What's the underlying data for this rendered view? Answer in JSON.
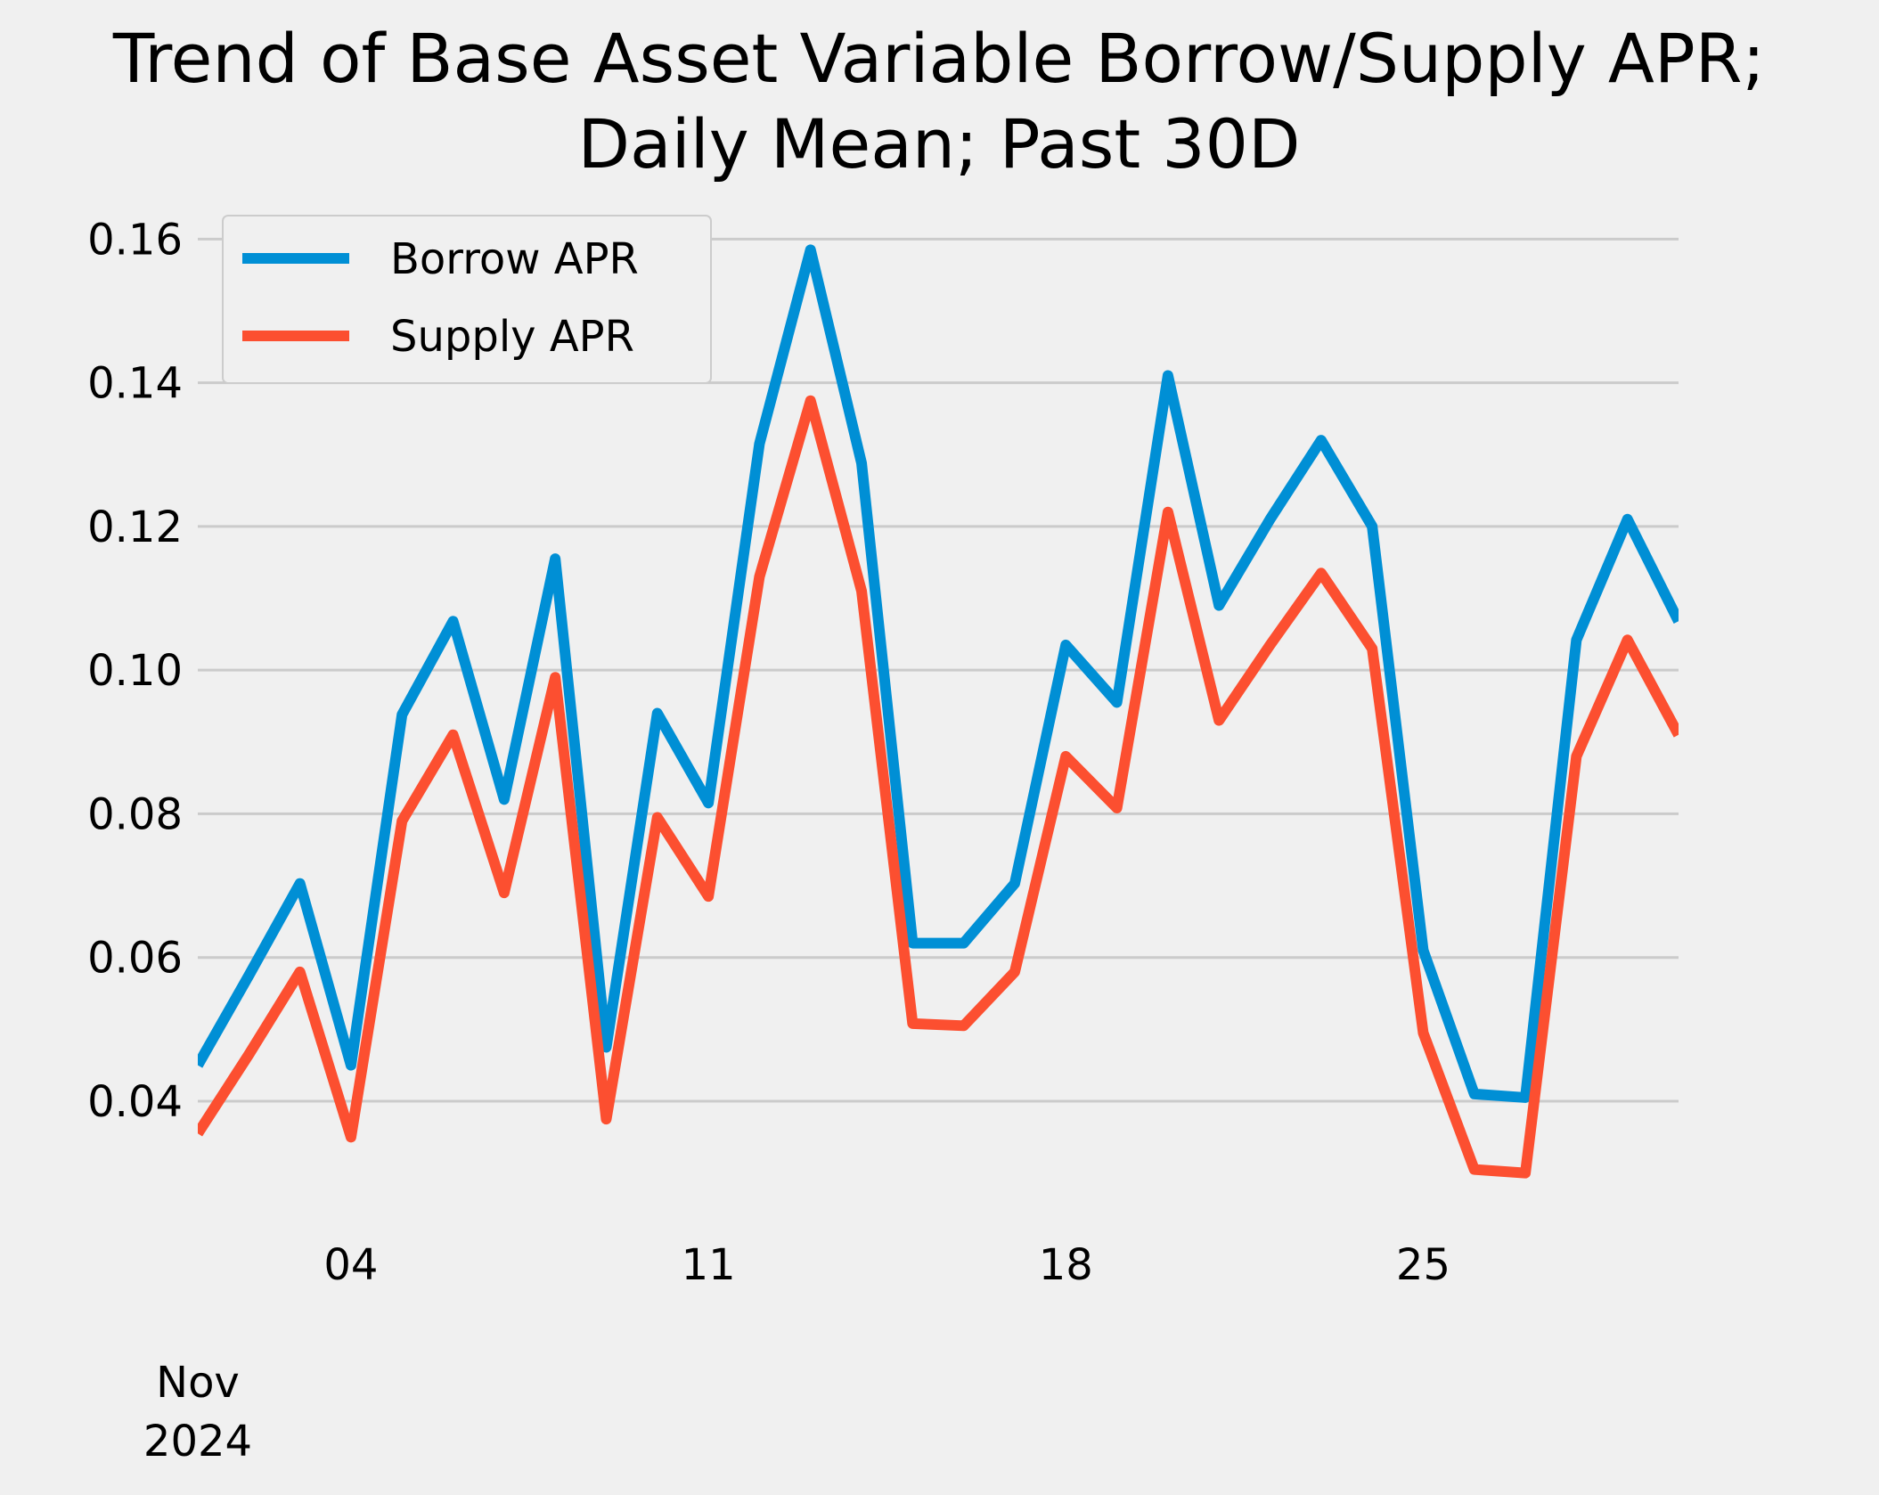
{
  "chart_data": {
    "type": "line",
    "title_lines": [
      "Trend of Base Asset Variable Borrow/Supply APR;",
      "Daily Mean; Past 30D"
    ],
    "xlabel": "",
    "ylabel": "",
    "x": [
      "2024-11-01",
      "2024-11-02",
      "2024-11-03",
      "2024-11-04",
      "2024-11-05",
      "2024-11-06",
      "2024-11-07",
      "2024-11-08",
      "2024-11-09",
      "2024-11-10",
      "2024-11-11",
      "2024-11-12",
      "2024-11-13",
      "2024-11-14",
      "2024-11-15",
      "2024-11-16",
      "2024-11-17",
      "2024-11-18",
      "2024-11-19",
      "2024-11-20",
      "2024-11-21",
      "2024-11-22",
      "2024-11-23",
      "2024-11-24",
      "2024-11-25",
      "2024-11-26",
      "2024-11-27",
      "2024-11-28",
      "2024-11-29",
      "2024-11-30"
    ],
    "x_range": [
      "2024-11-01",
      "2024-11-30"
    ],
    "x_ticks": [
      {
        "date": "2024-11-04",
        "label": "04"
      },
      {
        "date": "2024-11-11",
        "label": "11"
      },
      {
        "date": "2024-11-18",
        "label": "18"
      },
      {
        "date": "2024-11-25",
        "label": "25"
      }
    ],
    "x_secondary_label": [
      "Nov",
      "2024"
    ],
    "ylim": [
      0.024,
      0.165
    ],
    "y_ticks": [
      0.04,
      0.06,
      0.08,
      0.1,
      0.12,
      0.14,
      0.16
    ],
    "y_tick_labels": [
      "0.04",
      "0.06",
      "0.08",
      "0.10",
      "0.12",
      "0.14",
      "0.16"
    ],
    "grid": "horizontal",
    "legend_position": "top-left",
    "series": [
      {
        "name": "Borrow APR",
        "color": "#008fd5",
        "values": [
          0.045,
          0.0575,
          0.0703,
          0.045,
          0.0938,
          0.1068,
          0.082,
          0.1155,
          0.0475,
          0.094,
          0.0815,
          0.1315,
          0.1585,
          0.1288,
          0.062,
          0.062,
          0.0703,
          0.1035,
          0.0955,
          0.141,
          0.109,
          0.121,
          0.132,
          0.12,
          0.061,
          0.041,
          0.0405,
          0.1042,
          0.121,
          0.1068
        ]
      },
      {
        "name": "Supply APR",
        "color": "#fc4f30",
        "values": [
          0.0355,
          0.0465,
          0.058,
          0.035,
          0.079,
          0.091,
          0.069,
          0.099,
          0.0375,
          0.0795,
          0.0685,
          0.113,
          0.1375,
          0.111,
          0.0508,
          0.0505,
          0.058,
          0.088,
          0.0808,
          0.122,
          0.093,
          0.1035,
          0.1135,
          0.103,
          0.0495,
          0.0305,
          0.03,
          0.088,
          0.1042,
          0.091
        ]
      }
    ]
  }
}
